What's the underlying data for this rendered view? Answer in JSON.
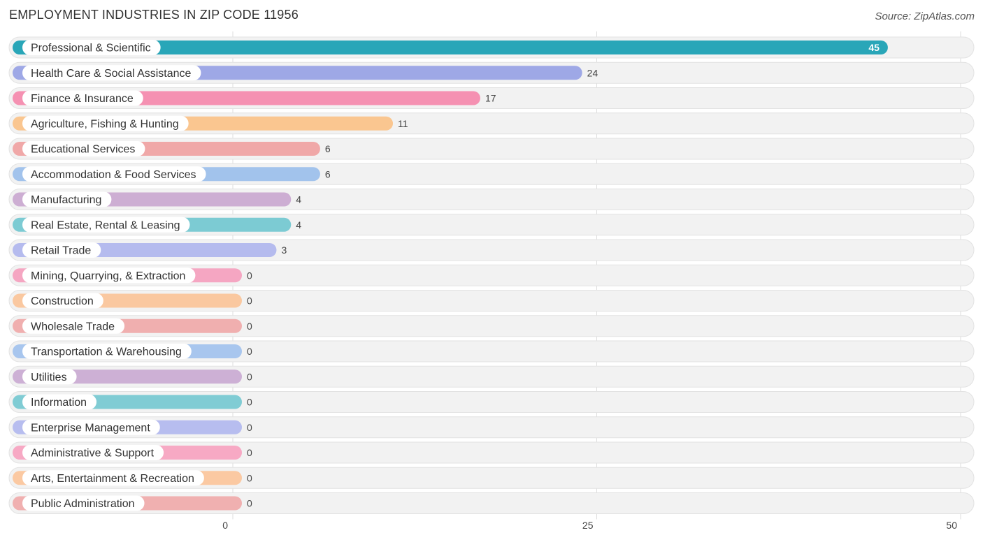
{
  "chart_data": {
    "type": "bar",
    "orientation": "horizontal",
    "title": "EMPLOYMENT INDUSTRIES IN ZIP CODE 11956",
    "source": "Source: ZipAtlas.com",
    "xlim": [
      0,
      50
    ],
    "ticks": [
      0,
      25,
      50
    ],
    "grid": true,
    "categories": [
      "Professional & Scientific",
      "Health Care & Social Assistance",
      "Finance & Insurance",
      "Agriculture, Fishing & Hunting",
      "Educational Services",
      "Accommodation & Food Services",
      "Manufacturing",
      "Real Estate, Rental & Leasing",
      "Retail Trade",
      "Mining, Quarrying, & Extraction",
      "Construction",
      "Wholesale Trade",
      "Transportation & Warehousing",
      "Utilities",
      "Information",
      "Enterprise Management",
      "Administrative & Support",
      "Arts, Entertainment & Recreation",
      "Public Administration"
    ],
    "values": [
      45,
      24,
      17,
      11,
      6,
      6,
      4,
      4,
      3,
      0,
      0,
      0,
      0,
      0,
      0,
      0,
      0,
      0,
      0
    ],
    "colors": [
      "#29a6b8",
      "#9ea8e6",
      "#f591b2",
      "#fac690",
      "#f0a8a8",
      "#a2c3ec",
      "#cdaed3",
      "#7ccbd3",
      "#b5bbee",
      "#f5a6c2",
      "#fac8a0",
      "#f0afaf",
      "#a8c6ee",
      "#cdb0d5",
      "#80ccd4",
      "#b7bdef",
      "#f7a9c4",
      "#fbc9a2",
      "#f0b0b0"
    ]
  }
}
